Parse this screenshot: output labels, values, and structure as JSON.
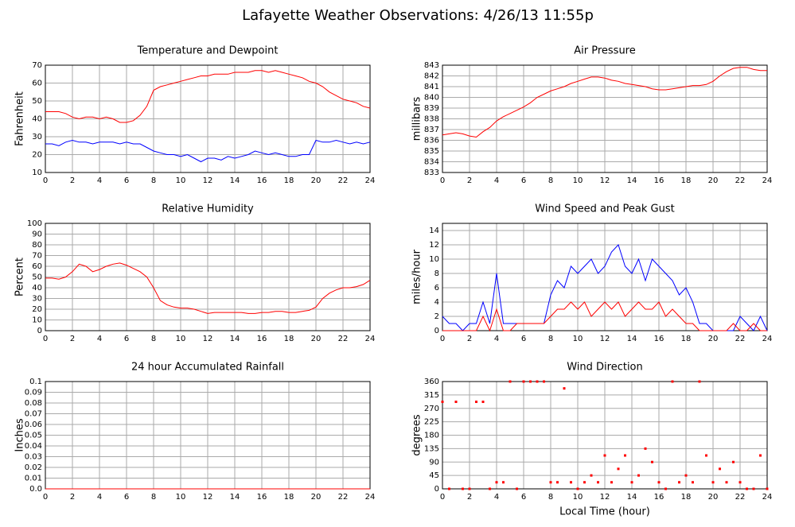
{
  "title": "Lafayette Weather Observations: 4/26/13 11:55p",
  "chart_data": [
    {
      "type": "line",
      "title": "Temperature and Dewpoint",
      "ylabel": "Fahrenheit",
      "x": [
        0,
        0.5,
        1,
        1.5,
        2,
        2.5,
        3,
        3.5,
        4,
        4.5,
        5,
        5.5,
        6,
        6.5,
        7,
        7.5,
        8,
        8.5,
        9,
        9.5,
        10,
        10.5,
        11,
        11.5,
        12,
        12.5,
        13,
        13.5,
        14,
        14.5,
        15,
        15.5,
        16,
        16.5,
        17,
        17.5,
        18,
        18.5,
        19,
        19.5,
        20,
        20.5,
        21,
        21.5,
        22,
        22.5,
        23,
        23.5,
        24
      ],
      "series": [
        {
          "color": "#ff0000",
          "values": [
            44,
            44,
            44,
            43,
            41,
            40,
            41,
            41,
            40,
            41,
            40,
            38,
            38,
            39,
            42,
            47,
            56,
            58,
            59,
            60,
            61,
            62,
            63,
            64,
            64,
            65,
            65,
            65,
            66,
            66,
            66,
            67,
            67,
            66,
            67,
            66,
            65,
            64,
            63,
            61,
            60,
            58,
            55,
            53,
            51,
            50,
            49,
            47,
            46
          ]
        },
        {
          "color": "#0000ff",
          "values": [
            26,
            26,
            25,
            27,
            28,
            27,
            27,
            26,
            27,
            27,
            27,
            26,
            27,
            26,
            26,
            24,
            22,
            21,
            20,
            20,
            19,
            20,
            18,
            16,
            18,
            18,
            17,
            19,
            18,
            19,
            20,
            22,
            21,
            20,
            21,
            20,
            19,
            19,
            20,
            20,
            28,
            27,
            27,
            28,
            27,
            26,
            27,
            26,
            27
          ]
        }
      ],
      "xlim": [
        0,
        24
      ],
      "xticks": [
        0,
        2,
        4,
        6,
        8,
        10,
        12,
        14,
        16,
        18,
        20,
        22,
        24
      ],
      "ylim": [
        10,
        70
      ],
      "yticks": [
        10,
        20,
        30,
        40,
        50,
        60,
        70
      ],
      "grid": true
    },
    {
      "type": "line",
      "title": "Air Pressure",
      "ylabel": "millibars",
      "x": [
        0,
        0.5,
        1,
        1.5,
        2,
        2.5,
        3,
        3.5,
        4,
        4.5,
        5,
        5.5,
        6,
        6.5,
        7,
        7.5,
        8,
        8.5,
        9,
        9.5,
        10,
        10.5,
        11,
        11.5,
        12,
        12.5,
        13,
        13.5,
        14,
        14.5,
        15,
        15.5,
        16,
        16.5,
        17,
        17.5,
        18,
        18.5,
        19,
        19.5,
        20,
        20.5,
        21,
        21.5,
        22,
        22.5,
        23,
        23.5,
        24
      ],
      "series": [
        {
          "color": "#ff0000",
          "values": [
            836.5,
            836.6,
            836.7,
            836.6,
            836.4,
            836.3,
            836.8,
            837.2,
            837.8,
            838.2,
            838.5,
            838.8,
            839.1,
            839.5,
            840.0,
            840.3,
            840.6,
            840.8,
            841.0,
            841.3,
            841.5,
            841.7,
            841.9,
            841.9,
            841.8,
            841.6,
            841.5,
            841.3,
            841.2,
            841.1,
            841.0,
            840.8,
            840.7,
            840.7,
            840.8,
            840.9,
            841.0,
            841.1,
            841.1,
            841.2,
            841.5,
            842.0,
            842.4,
            842.7,
            842.8,
            842.8,
            842.6,
            842.5,
            842.5
          ]
        }
      ],
      "xlim": [
        0,
        24
      ],
      "xticks": [
        0,
        2,
        4,
        6,
        8,
        10,
        12,
        14,
        16,
        18,
        20,
        22,
        24
      ],
      "ylim": [
        833,
        843
      ],
      "yticks": [
        833,
        834,
        835,
        836,
        837,
        838,
        839,
        840,
        841,
        842,
        843
      ],
      "grid": true
    },
    {
      "type": "line",
      "title": "Relative Humidity",
      "ylabel": "Percent",
      "x": [
        0,
        0.5,
        1,
        1.5,
        2,
        2.5,
        3,
        3.5,
        4,
        4.5,
        5,
        5.5,
        6,
        6.5,
        7,
        7.5,
        8,
        8.5,
        9,
        9.5,
        10,
        10.5,
        11,
        11.5,
        12,
        12.5,
        13,
        13.5,
        14,
        14.5,
        15,
        15.5,
        16,
        16.5,
        17,
        17.5,
        18,
        18.5,
        19,
        19.5,
        20,
        20.5,
        21,
        21.5,
        22,
        22.5,
        23,
        23.5,
        24
      ],
      "series": [
        {
          "color": "#ff0000",
          "values": [
            49,
            49,
            48,
            50,
            55,
            62,
            60,
            55,
            57,
            60,
            62,
            63,
            61,
            58,
            55,
            50,
            40,
            28,
            24,
            22,
            21,
            21,
            20,
            18,
            16,
            17,
            17,
            17,
            17,
            17,
            16,
            16,
            17,
            17,
            18,
            18,
            17,
            17,
            18,
            19,
            22,
            30,
            35,
            38,
            40,
            40,
            41,
            43,
            47
          ]
        }
      ],
      "xlim": [
        0,
        24
      ],
      "xticks": [
        0,
        2,
        4,
        6,
        8,
        10,
        12,
        14,
        16,
        18,
        20,
        22,
        24
      ],
      "ylim": [
        0,
        100
      ],
      "yticks": [
        0,
        10,
        20,
        30,
        40,
        50,
        60,
        70,
        80,
        90,
        100
      ],
      "grid": true
    },
    {
      "type": "line",
      "title": "Wind Speed and Peak Gust",
      "ylabel": "miles/hour",
      "x": [
        0,
        0.5,
        1,
        1.5,
        2,
        2.5,
        3,
        3.5,
        4,
        4.5,
        5,
        5.5,
        6,
        6.5,
        7,
        7.5,
        8,
        8.5,
        9,
        9.5,
        10,
        10.5,
        11,
        11.5,
        12,
        12.5,
        13,
        13.5,
        14,
        14.5,
        15,
        15.5,
        16,
        16.5,
        17,
        17.5,
        18,
        18.5,
        19,
        19.5,
        20,
        20.5,
        21,
        21.5,
        22,
        22.5,
        23,
        23.5,
        24
      ],
      "series": [
        {
          "color": "#0000ff",
          "values": [
            2,
            1,
            1,
            0,
            1,
            1,
            4,
            1,
            8,
            1,
            1,
            1,
            1,
            1,
            1,
            1,
            5,
            7,
            6,
            9,
            8,
            9,
            10,
            8,
            9,
            11,
            12,
            9,
            8,
            10,
            7,
            10,
            9,
            8,
            7,
            5,
            6,
            4,
            1,
            1,
            0,
            0,
            0,
            0,
            2,
            1,
            0,
            2,
            0
          ]
        },
        {
          "color": "#ff0000",
          "values": [
            0,
            0,
            0,
            0,
            0,
            0,
            2,
            0,
            3,
            0,
            0,
            1,
            1,
            1,
            1,
            1,
            2,
            3,
            3,
            4,
            3,
            4,
            2,
            3,
            4,
            3,
            4,
            2,
            3,
            4,
            3,
            3,
            4,
            2,
            3,
            2,
            1,
            1,
            0,
            0,
            0,
            0,
            0,
            1,
            0,
            0,
            1,
            0,
            0
          ]
        }
      ],
      "xlim": [
        0,
        24
      ],
      "xticks": [
        0,
        2,
        4,
        6,
        8,
        10,
        12,
        14,
        16,
        18,
        20,
        22,
        24
      ],
      "ylim": [
        0,
        15
      ],
      "yticks": [
        0,
        2,
        4,
        6,
        8,
        10,
        12,
        14
      ],
      "grid": true
    },
    {
      "type": "line",
      "title": "24 hour Accumulated Rainfall",
      "ylabel": "Inches",
      "x": [
        0,
        24
      ],
      "series": [
        {
          "color": "#ff0000",
          "values": [
            0,
            0
          ]
        }
      ],
      "xlim": [
        0,
        24
      ],
      "xticks": [
        0,
        2,
        4,
        6,
        8,
        10,
        12,
        14,
        16,
        18,
        20,
        22,
        24
      ],
      "ylim": [
        0,
        0.1
      ],
      "yticks": [
        {
          "value": 0,
          "label": "0.0"
        },
        0.01,
        0.02,
        0.03,
        0.04,
        0.05,
        0.06,
        0.07,
        0.08,
        0.09,
        0.1
      ],
      "grid": true
    },
    {
      "type": "scatter",
      "title": "Wind Direction",
      "ylabel": "degrees",
      "xlabel": "Local Time (hour)",
      "x": [
        0,
        0.5,
        1,
        1.5,
        2,
        2.5,
        3,
        3.5,
        4,
        4.5,
        5,
        5.5,
        6,
        6.5,
        7,
        7.5,
        8,
        8.5,
        9,
        9.5,
        10,
        10.5,
        11,
        11.5,
        12,
        12.5,
        13,
        13.5,
        14,
        14.5,
        15,
        15.5,
        16,
        16.5,
        17,
        17.5,
        18,
        18.5,
        19,
        19.5,
        20,
        20.5,
        21,
        21.5,
        22,
        22.5,
        23,
        23.5,
        24
      ],
      "series": [
        {
          "color": "#ff0000",
          "values": [
            292,
            0,
            292,
            0,
            0,
            292,
            292,
            0,
            22,
            22,
            360,
            0,
            360,
            360,
            360,
            360,
            22,
            22,
            337,
            22,
            0,
            22,
            45,
            22,
            112,
            22,
            67,
            112,
            22,
            45,
            135,
            90,
            22,
            0,
            360,
            22,
            45,
            22,
            360,
            112,
            22,
            67,
            22,
            90,
            22,
            0,
            0,
            112,
            0
          ]
        }
      ],
      "xlim": [
        0,
        24
      ],
      "xticks": [
        0,
        2,
        4,
        6,
        8,
        10,
        12,
        14,
        16,
        18,
        20,
        22,
        24
      ],
      "ylim": [
        0,
        360
      ],
      "yticks": [
        0,
        45,
        90,
        135,
        180,
        225,
        270,
        315,
        360
      ],
      "grid": true
    }
  ]
}
